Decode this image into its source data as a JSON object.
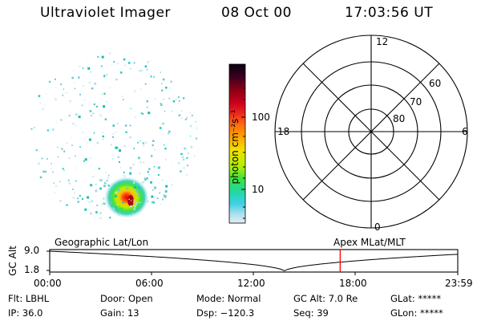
{
  "header": {
    "instrument": "Ultraviolet Imager",
    "date": "08 Oct 00",
    "time": "17:03:56 UT"
  },
  "colorbar": {
    "label": "photon cm⁻²s⁻¹",
    "ticks": [
      "100",
      "10"
    ],
    "scale": "log",
    "stops": [
      "#0a0010",
      "#3b0020",
      "#8b0014",
      "#c8001e",
      "#e82020",
      "#ff6a10",
      "#ffa400",
      "#f0e000",
      "#b4f000",
      "#40e040",
      "#20d8a0",
      "#40d0e8",
      "#a8e0ec",
      "#e4eef0"
    ]
  },
  "polar": {
    "mlt_labels": [
      "12",
      "18",
      "6",
      "0"
    ],
    "lat_labels": [
      "60",
      "70",
      "80"
    ]
  },
  "timeline": {
    "y_axis_label": "GC Alt",
    "y_ticks": [
      "9.0",
      "1.8"
    ],
    "left_label": "Geographic Lat/Lon",
    "right_label": "Apex MLat/MLT",
    "x_ticks": [
      "00:00",
      "06:00",
      "12:00",
      "18:00",
      "23:59"
    ],
    "current_time_hours": 17.07,
    "marker_color": "#ff0000"
  },
  "info": {
    "flt": "Flt: LBHL",
    "ip": "IP: 36.0",
    "door": "Door: Open",
    "gain": "Gain: 13",
    "mode": "Mode: Normal",
    "dsp": "Dsp: −120.3",
    "gc_alt": "GC Alt: 7.0 Re",
    "seq": "Seq: 39",
    "glat": "GLat: *****",
    "glon": "GLon: *****"
  }
}
